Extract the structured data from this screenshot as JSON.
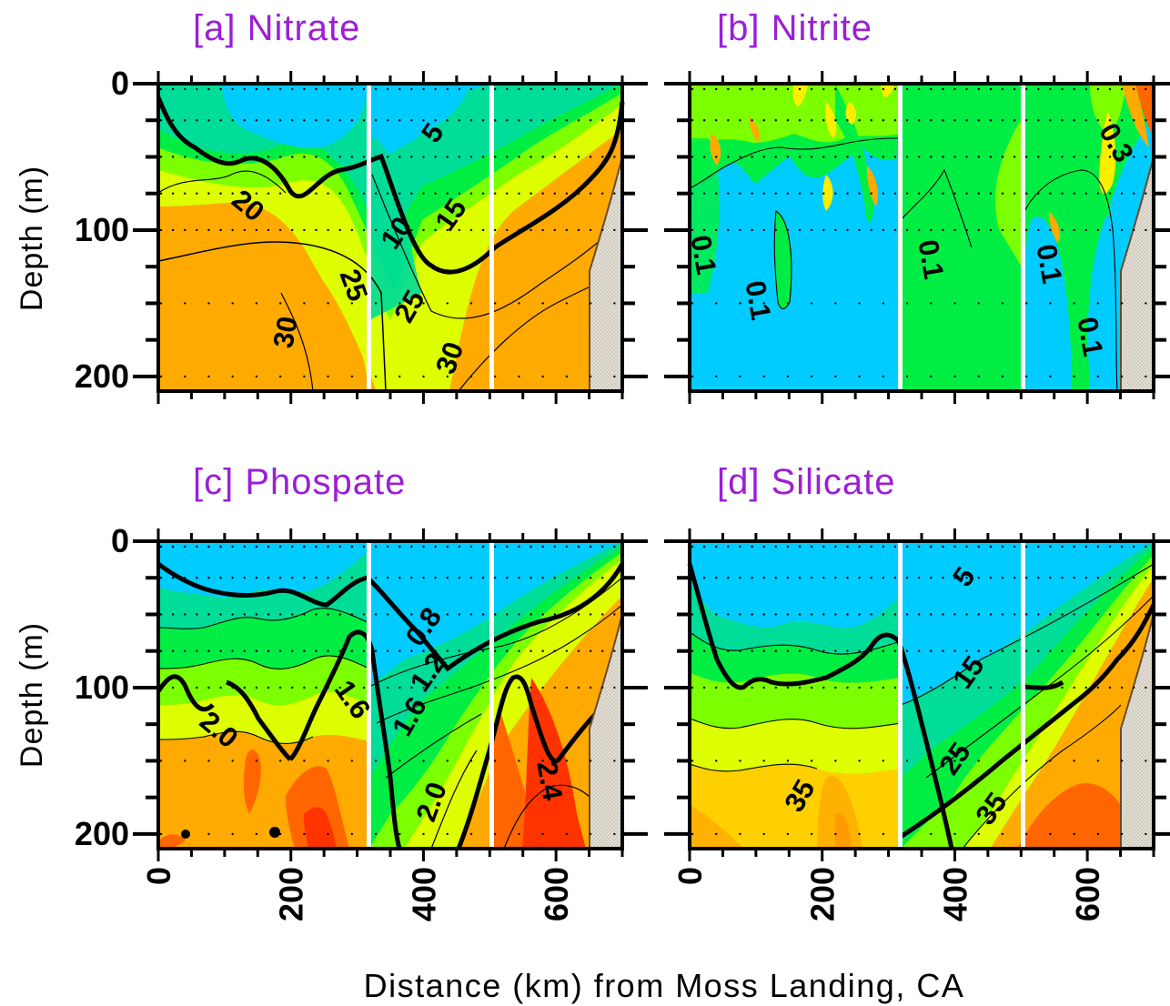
{
  "figure": {
    "xlabel": "Distance (km) from Moss Landing, CA",
    "ylabel": "Depth (m)"
  },
  "colors": {
    "title": "#9b1fd6",
    "levels": [
      "#00ccff",
      "#00dd99",
      "#00ee44",
      "#7cff00",
      "#ddff00",
      "#ffee00",
      "#ffaa00",
      "#ff6600",
      "#ff3300"
    ],
    "shelf": "#ddd8cc"
  },
  "chart_data": [
    {
      "type": "heatmap",
      "title": "[a] Nitrate",
      "xlabel": "Distance (km) from Moss Landing, CA",
      "ylabel": "Depth (m)",
      "xlim": [
        0,
        700
      ],
      "ylim": [
        210,
        0
      ],
      "xticks": [
        "0",
        "200",
        "400",
        "600"
      ],
      "yticks": [
        "0",
        "100",
        "200"
      ],
      "contour_labels": [
        "5",
        "10",
        "15",
        "20",
        "25",
        "30"
      ],
      "contours": [
        {
          "value": 15,
          "points": [
            [
              0,
              15
            ],
            [
              30,
              45
            ],
            [
              80,
              65
            ],
            [
              120,
              52
            ],
            [
              165,
              82
            ],
            [
              200,
              70
            ],
            [
              250,
              58
            ],
            [
              290,
              100
            ],
            [
              318,
              130
            ],
            [
              360,
              142
            ],
            [
              420,
              110
            ],
            [
              480,
              85
            ],
            [
              515,
              70
            ],
            [
              560,
              55
            ],
            [
              630,
              40
            ],
            [
              690,
              15
            ]
          ]
        },
        {
          "value": 25,
          "points": [
            [
              0,
              110
            ],
            [
              150,
              100
            ],
            [
              290,
              110
            ],
            [
              330,
              160
            ],
            [
              380,
              185
            ],
            [
              440,
              165
            ],
            [
              500,
              140
            ],
            [
              580,
              110
            ],
            [
              640,
              80
            ]
          ]
        }
      ]
    },
    {
      "type": "heatmap",
      "title": "[b] Nitrite",
      "xlabel": "Distance (km) from Moss Landing, CA",
      "ylabel": "Depth (m)",
      "xlim": [
        0,
        700
      ],
      "ylim": [
        210,
        0
      ],
      "xticks": [
        "0",
        "200",
        "400",
        "600"
      ],
      "yticks": [
        "0",
        "100",
        "200"
      ],
      "contour_labels": [
        "0.1",
        "0.1",
        "0.1",
        "0.1",
        "0.1",
        "0.3"
      ],
      "contours": []
    },
    {
      "type": "heatmap",
      "title": "[c] Phospate",
      "xlabel": "Distance (km) from Moss Landing, CA",
      "ylabel": "Depth (m)",
      "xlim": [
        0,
        700
      ],
      "ylim": [
        210,
        0
      ],
      "xticks": [
        "0",
        "200",
        "400",
        "600"
      ],
      "yticks": [
        "0",
        "100",
        "200"
      ],
      "contour_labels": [
        "0.8",
        "1.2",
        "1.6",
        "1.6",
        "2.0",
        "2.0",
        "2.4"
      ],
      "contours": [
        {
          "value": 1.2,
          "points": [
            [
              0,
              20
            ],
            [
              40,
              50
            ],
            [
              100,
              58
            ],
            [
              160,
              62
            ],
            [
              200,
              50
            ],
            [
              250,
              40
            ],
            [
              290,
              75
            ],
            [
              318,
              100
            ],
            [
              360,
              88
            ],
            [
              420,
              65
            ],
            [
              470,
              52
            ],
            [
              515,
              55
            ],
            [
              560,
              45
            ],
            [
              630,
              30
            ],
            [
              690,
              5
            ]
          ]
        },
        {
          "value": 2.0,
          "points": [
            [
              0,
              105
            ],
            [
              20,
              95
            ],
            [
              40,
              110
            ],
            [
              70,
              120
            ],
            [
              110,
              125
            ],
            [
              160,
              150
            ],
            [
              200,
              140
            ],
            [
              240,
              105
            ],
            [
              260,
              95
            ],
            [
              275,
              110
            ],
            [
              290,
              160
            ],
            [
              300,
              210
            ]
          ]
        }
      ]
    },
    {
      "type": "heatmap",
      "title": "[d] Silicate",
      "xlabel": "Distance (km) from Moss Landing, CA",
      "ylabel": "Depth (m)",
      "xlim": [
        0,
        700
      ],
      "ylim": [
        210,
        0
      ],
      "xticks": [
        "0",
        "200",
        "400",
        "600"
      ],
      "yticks": [
        "0",
        "100",
        "200"
      ],
      "contour_labels": [
        "5",
        "15",
        "25",
        "35",
        "35"
      ],
      "contours": [
        {
          "value": 25,
          "points": [
            [
              0,
              25
            ],
            [
              20,
              60
            ],
            [
              40,
              100
            ],
            [
              80,
              112
            ],
            [
              140,
              100
            ],
            [
              200,
              115
            ],
            [
              250,
              95
            ],
            [
              280,
              130
            ],
            [
              300,
              170
            ],
            [
              318,
              205
            ],
            [
              380,
              175
            ],
            [
              450,
              140
            ],
            [
              500,
              110
            ],
            [
              560,
              105
            ],
            [
              620,
              80
            ],
            [
              690,
              35
            ]
          ]
        }
      ]
    }
  ]
}
